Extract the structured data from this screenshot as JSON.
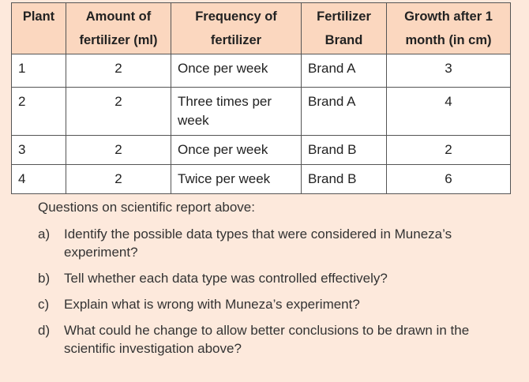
{
  "table": {
    "headers": [
      "Plant",
      "Amount of fertilizer (ml)",
      "Frequency of fertilizer",
      "Fertilizer Brand",
      "Growth after 1 month (in cm)"
    ],
    "rows": [
      [
        1,
        2,
        "Once per week",
        "Brand A",
        3
      ],
      [
        2,
        2,
        "Three times per week",
        "Brand A",
        4
      ],
      [
        3,
        2,
        "Once per week",
        "Brand B",
        2
      ],
      [
        4,
        2,
        "Twice per week",
        "Brand B",
        6
      ]
    ]
  },
  "questions": {
    "title": "Questions on scientific report above:",
    "items": [
      {
        "label": "a)",
        "text": "Identify the possible data types that were considered in Muneza’s experiment?"
      },
      {
        "label": "b)",
        "text": "Tell whether each data type was controlled effectively?"
      },
      {
        "label": "c)",
        "text": "Explain what is wrong with Muneza’s experiment?"
      },
      {
        "label": "d)",
        "text": "What could he change to allow better conclusions to be drawn in the scientific investigation above?"
      }
    ]
  }
}
